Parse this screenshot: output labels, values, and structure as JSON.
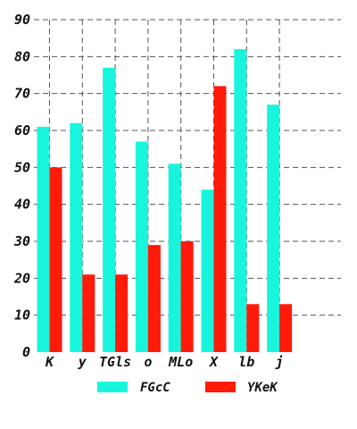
{
  "chart_data": {
    "type": "bar",
    "categories": [
      "K",
      "y",
      "TGls",
      "o",
      "MLo",
      "X",
      "lb",
      "j"
    ],
    "series": [
      {
        "name": "FGcC",
        "values": [
          61,
          62,
          77,
          57,
          51,
          44,
          82,
          67
        ],
        "color": "#19f5dc"
      },
      {
        "name": "YKeK",
        "values": [
          50,
          21,
          21,
          29,
          30,
          72,
          13,
          13
        ],
        "color": "#ff1a0a"
      }
    ],
    "yticks": [
      "0",
      "10",
      "20",
      "30",
      "40",
      "50",
      "60",
      "70",
      "80",
      "90"
    ],
    "ylim": [
      0,
      90
    ],
    "grid": true,
    "legend_position": "bottom"
  }
}
